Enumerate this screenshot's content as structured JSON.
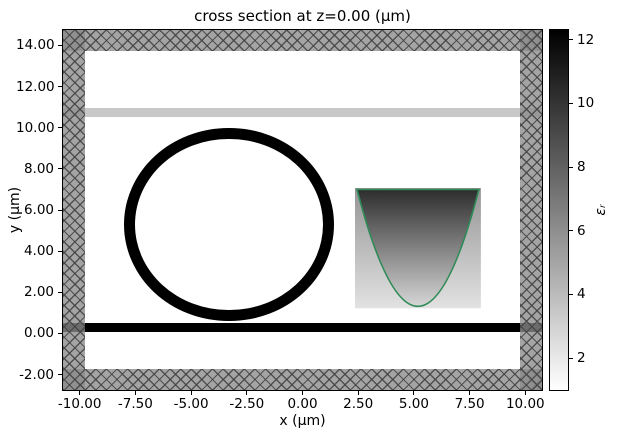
{
  "chart_data": {
    "type": "heatmap",
    "title": "cross section at z=0.00 (µm)",
    "xlabel": "x (µm)",
    "ylabel": "y (µm)",
    "xlim": [
      -10.75,
      10.75
    ],
    "ylim": [
      -2.75,
      14.75
    ],
    "grid": false,
    "xticks": [
      -10,
      -7.5,
      -5,
      -2.5,
      0,
      2.5,
      5,
      7.5,
      10
    ],
    "xtick_labels": [
      "-10.00",
      "-7.50",
      "-5.00",
      "-2.50",
      "0.00",
      "2.50",
      "5.00",
      "7.50",
      "10.00"
    ],
    "yticks": [
      -2,
      0,
      2,
      4,
      6,
      8,
      10,
      12,
      14
    ],
    "ytick_labels": [
      "-2.00",
      "0.00",
      "2.00",
      "4.00",
      "6.00",
      "8.00",
      "10.00",
      "12.00",
      "14.00"
    ],
    "colorbar": {
      "label": "εᵣ",
      "ticks": [
        2,
        4,
        6,
        8,
        10,
        12
      ],
      "tick_labels": [
        "2",
        "4",
        "6",
        "8",
        "10",
        "12"
      ],
      "range": [
        1,
        12.3
      ],
      "cmap": "white-to-black (low εᵣ white, high εᵣ black)",
      "position": "right"
    },
    "elements": {
      "pml_border": {
        "thickness_um": 1.0,
        "style": "gray cross-hatched band on all four edges",
        "fill_color": "#8a8a8a",
        "hatch_color": "#424242"
      },
      "substrate_slab": {
        "type": "rect",
        "x": -10.75,
        "y": 0.05,
        "width": 21.5,
        "height": 0.45,
        "eps_color": "#000000"
      },
      "upper_cladding_stripe": {
        "type": "rect",
        "x": -10.75,
        "y": 10.5,
        "width": 21.5,
        "height": 0.45,
        "eps_color": "#c8c8c8"
      },
      "ring_resonator": {
        "type": "annulus",
        "cx": -3.3,
        "cy": 5.3,
        "r_outer": 4.7,
        "r_inner": 4.15,
        "eps_color": "#000000"
      },
      "taper_region": {
        "type": "rect-with-parabola",
        "x_left": 2.35,
        "x_right": 8.0,
        "y_bottom": 1.2,
        "y_top": 7.05,
        "outline_color": "#2e8b57",
        "fill_top_color": "#2d2d2d",
        "fill_bottom_color": "#d6d6d6",
        "bg_top_color": "#949494",
        "bg_bottom_color": "#e2e2e2"
      }
    }
  }
}
